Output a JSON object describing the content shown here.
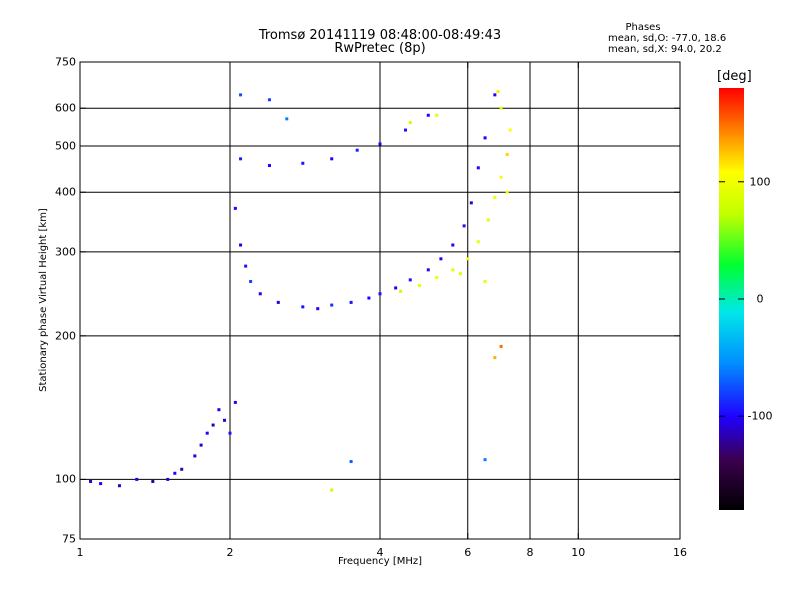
{
  "header": {
    "title_line1": "Tromsø 20141119 08:48:00-08:49:43",
    "title_line2": "RwPretec (8p)",
    "stats_title": "Phases",
    "stats_o": "mean, sd,O: -77.0, 18.6",
    "stats_x": "mean, sd,X:  94.0, 20.2"
  },
  "colorbar": {
    "title": "[deg]",
    "ticks": [
      "100",
      "0",
      "-100"
    ],
    "tick_values": [
      100,
      0,
      -100
    ],
    "range": [
      -180,
      180
    ]
  },
  "chart_data": {
    "type": "scatter",
    "xlabel": "Frequency [MHz]",
    "ylabel": "Stationary phase Virtual Height [km]",
    "xscale": "log",
    "yscale": "log",
    "xlim": [
      1,
      16
    ],
    "ylim": [
      75,
      750
    ],
    "xticks": [
      1,
      2,
      4,
      6,
      8,
      10,
      16
    ],
    "xtick_labels": [
      "1",
      "2",
      "4",
      "6",
      "8",
      "10",
      "16"
    ],
    "yticks": [
      75,
      100,
      200,
      300,
      400,
      500,
      600,
      750
    ],
    "ytick_labels": [
      "75",
      "100",
      "200",
      "300",
      "400",
      "500",
      "600",
      "750"
    ],
    "grid_x": [
      2,
      4,
      6,
      8,
      10
    ],
    "grid_y": [
      100,
      200,
      300,
      400,
      500,
      600
    ],
    "series": [
      {
        "points": [
          [
            1.05,
            99,
            -110
          ],
          [
            1.1,
            98,
            -100
          ],
          [
            1.2,
            97,
            -115
          ],
          [
            1.3,
            100,
            -105
          ],
          [
            1.4,
            99,
            -120
          ],
          [
            1.5,
            100,
            -110
          ],
          [
            1.55,
            103,
            -100
          ],
          [
            1.6,
            105,
            -115
          ],
          [
            1.7,
            112,
            -108
          ],
          [
            1.75,
            118,
            -112
          ],
          [
            1.8,
            125,
            -100
          ],
          [
            1.85,
            130,
            -118
          ],
          [
            1.9,
            140,
            -105
          ],
          [
            1.95,
            133,
            -110
          ],
          [
            2.0,
            125,
            -95
          ],
          [
            2.05,
            145,
            -100
          ],
          [
            2.05,
            370,
            -100
          ],
          [
            2.1,
            310,
            -105
          ],
          [
            2.15,
            280,
            -95
          ],
          [
            2.2,
            260,
            -80
          ],
          [
            2.3,
            245,
            -105
          ],
          [
            2.5,
            235,
            -110
          ],
          [
            2.8,
            230,
            -95
          ],
          [
            3.0,
            228,
            -100
          ],
          [
            3.2,
            232,
            -85
          ],
          [
            3.5,
            235,
            -95
          ],
          [
            3.8,
            240,
            -100
          ],
          [
            4.0,
            245,
            -95
          ],
          [
            4.3,
            252,
            -100
          ],
          [
            4.6,
            262,
            -95
          ],
          [
            5.0,
            275,
            -100
          ],
          [
            5.3,
            290,
            -105
          ],
          [
            5.6,
            310,
            -100
          ],
          [
            5.9,
            340,
            -95
          ],
          [
            6.1,
            380,
            -110
          ],
          [
            6.3,
            450,
            -100
          ],
          [
            6.5,
            520,
            -105
          ],
          [
            6.8,
            640,
            -100
          ],
          [
            2.1,
            470,
            -90
          ],
          [
            2.4,
            455,
            -100
          ],
          [
            2.8,
            460,
            -95
          ],
          [
            3.2,
            470,
            -100
          ],
          [
            3.6,
            490,
            -90
          ],
          [
            4.0,
            505,
            -100
          ],
          [
            4.5,
            540,
            -95
          ],
          [
            5.0,
            580,
            -100
          ],
          [
            2.1,
            640,
            -75
          ],
          [
            2.4,
            625,
            -80
          ],
          [
            2.6,
            570,
            -60
          ],
          [
            3.5,
            109,
            -70
          ],
          [
            6.5,
            110,
            -60
          ]
        ]
      },
      {
        "points": [
          [
            4.4,
            248,
            80
          ],
          [
            4.8,
            255,
            95
          ],
          [
            5.2,
            265,
            100
          ],
          [
            5.6,
            275,
            90
          ],
          [
            6.0,
            290,
            100
          ],
          [
            6.3,
            315,
            95
          ],
          [
            6.6,
            350,
            90
          ],
          [
            6.8,
            390,
            100
          ],
          [
            7.0,
            430,
            110
          ],
          [
            7.2,
            480,
            120
          ],
          [
            7.3,
            540,
            105
          ],
          [
            7.0,
            600,
            95
          ],
          [
            6.9,
            650,
            115
          ],
          [
            7.2,
            400,
            100
          ],
          [
            6.5,
            260,
            95
          ],
          [
            5.8,
            270,
            90
          ],
          [
            5.2,
            580,
            90
          ],
          [
            4.6,
            560,
            80
          ],
          [
            3.2,
            95,
            75
          ],
          [
            6.8,
            180,
            130
          ],
          [
            7.0,
            190,
            150
          ]
        ]
      }
    ]
  }
}
